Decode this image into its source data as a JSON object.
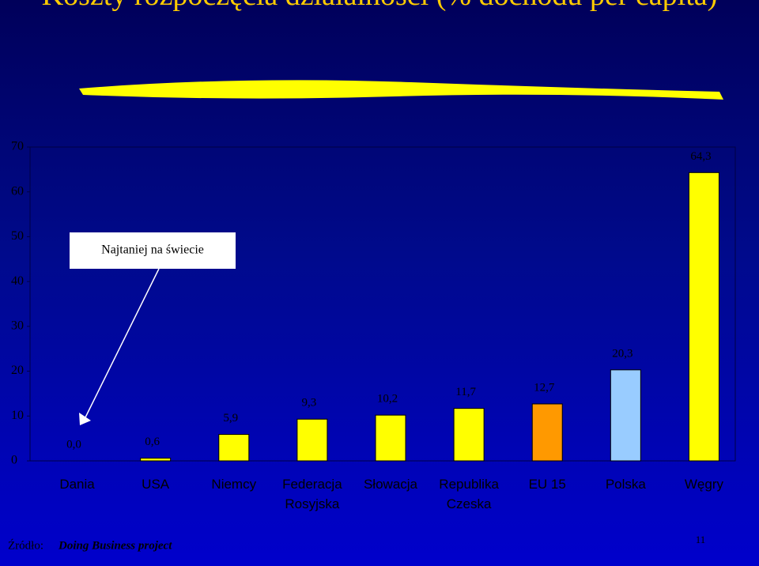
{
  "chart_data": {
    "type": "bar",
    "title": "Koszty rozpoczęcia działalności (% dochodu per capita)",
    "categories": [
      "Dania",
      "USA",
      "Niemcy",
      "Federacja Rosyjska",
      "Słowacja",
      "Republika Czeska",
      "EU 15",
      "Polska",
      "Węgry"
    ],
    "values": [
      0.0,
      0.6,
      5.9,
      9.3,
      10.2,
      11.7,
      12.7,
      20.3,
      64.3
    ],
    "value_labels": [
      "0,0",
      "0,6",
      "5,9",
      "9,3",
      "10,2",
      "11,7",
      "12,7",
      "20,3",
      "64,3"
    ],
    "colors": [
      "#ffff00",
      "#ffff00",
      "#ffff00",
      "#ffff00",
      "#ffff00",
      "#ffff00",
      "#ff9900",
      "#99ccff",
      "#ffff00"
    ],
    "ylim": [
      0,
      70
    ],
    "yticks": [
      0,
      10,
      20,
      30,
      40,
      50,
      60,
      70
    ],
    "grid": false,
    "annotation": "Najtaniej na świecie"
  },
  "footer": {
    "source_label": "Źródło:",
    "source": "Doing Business project",
    "page": "11"
  }
}
